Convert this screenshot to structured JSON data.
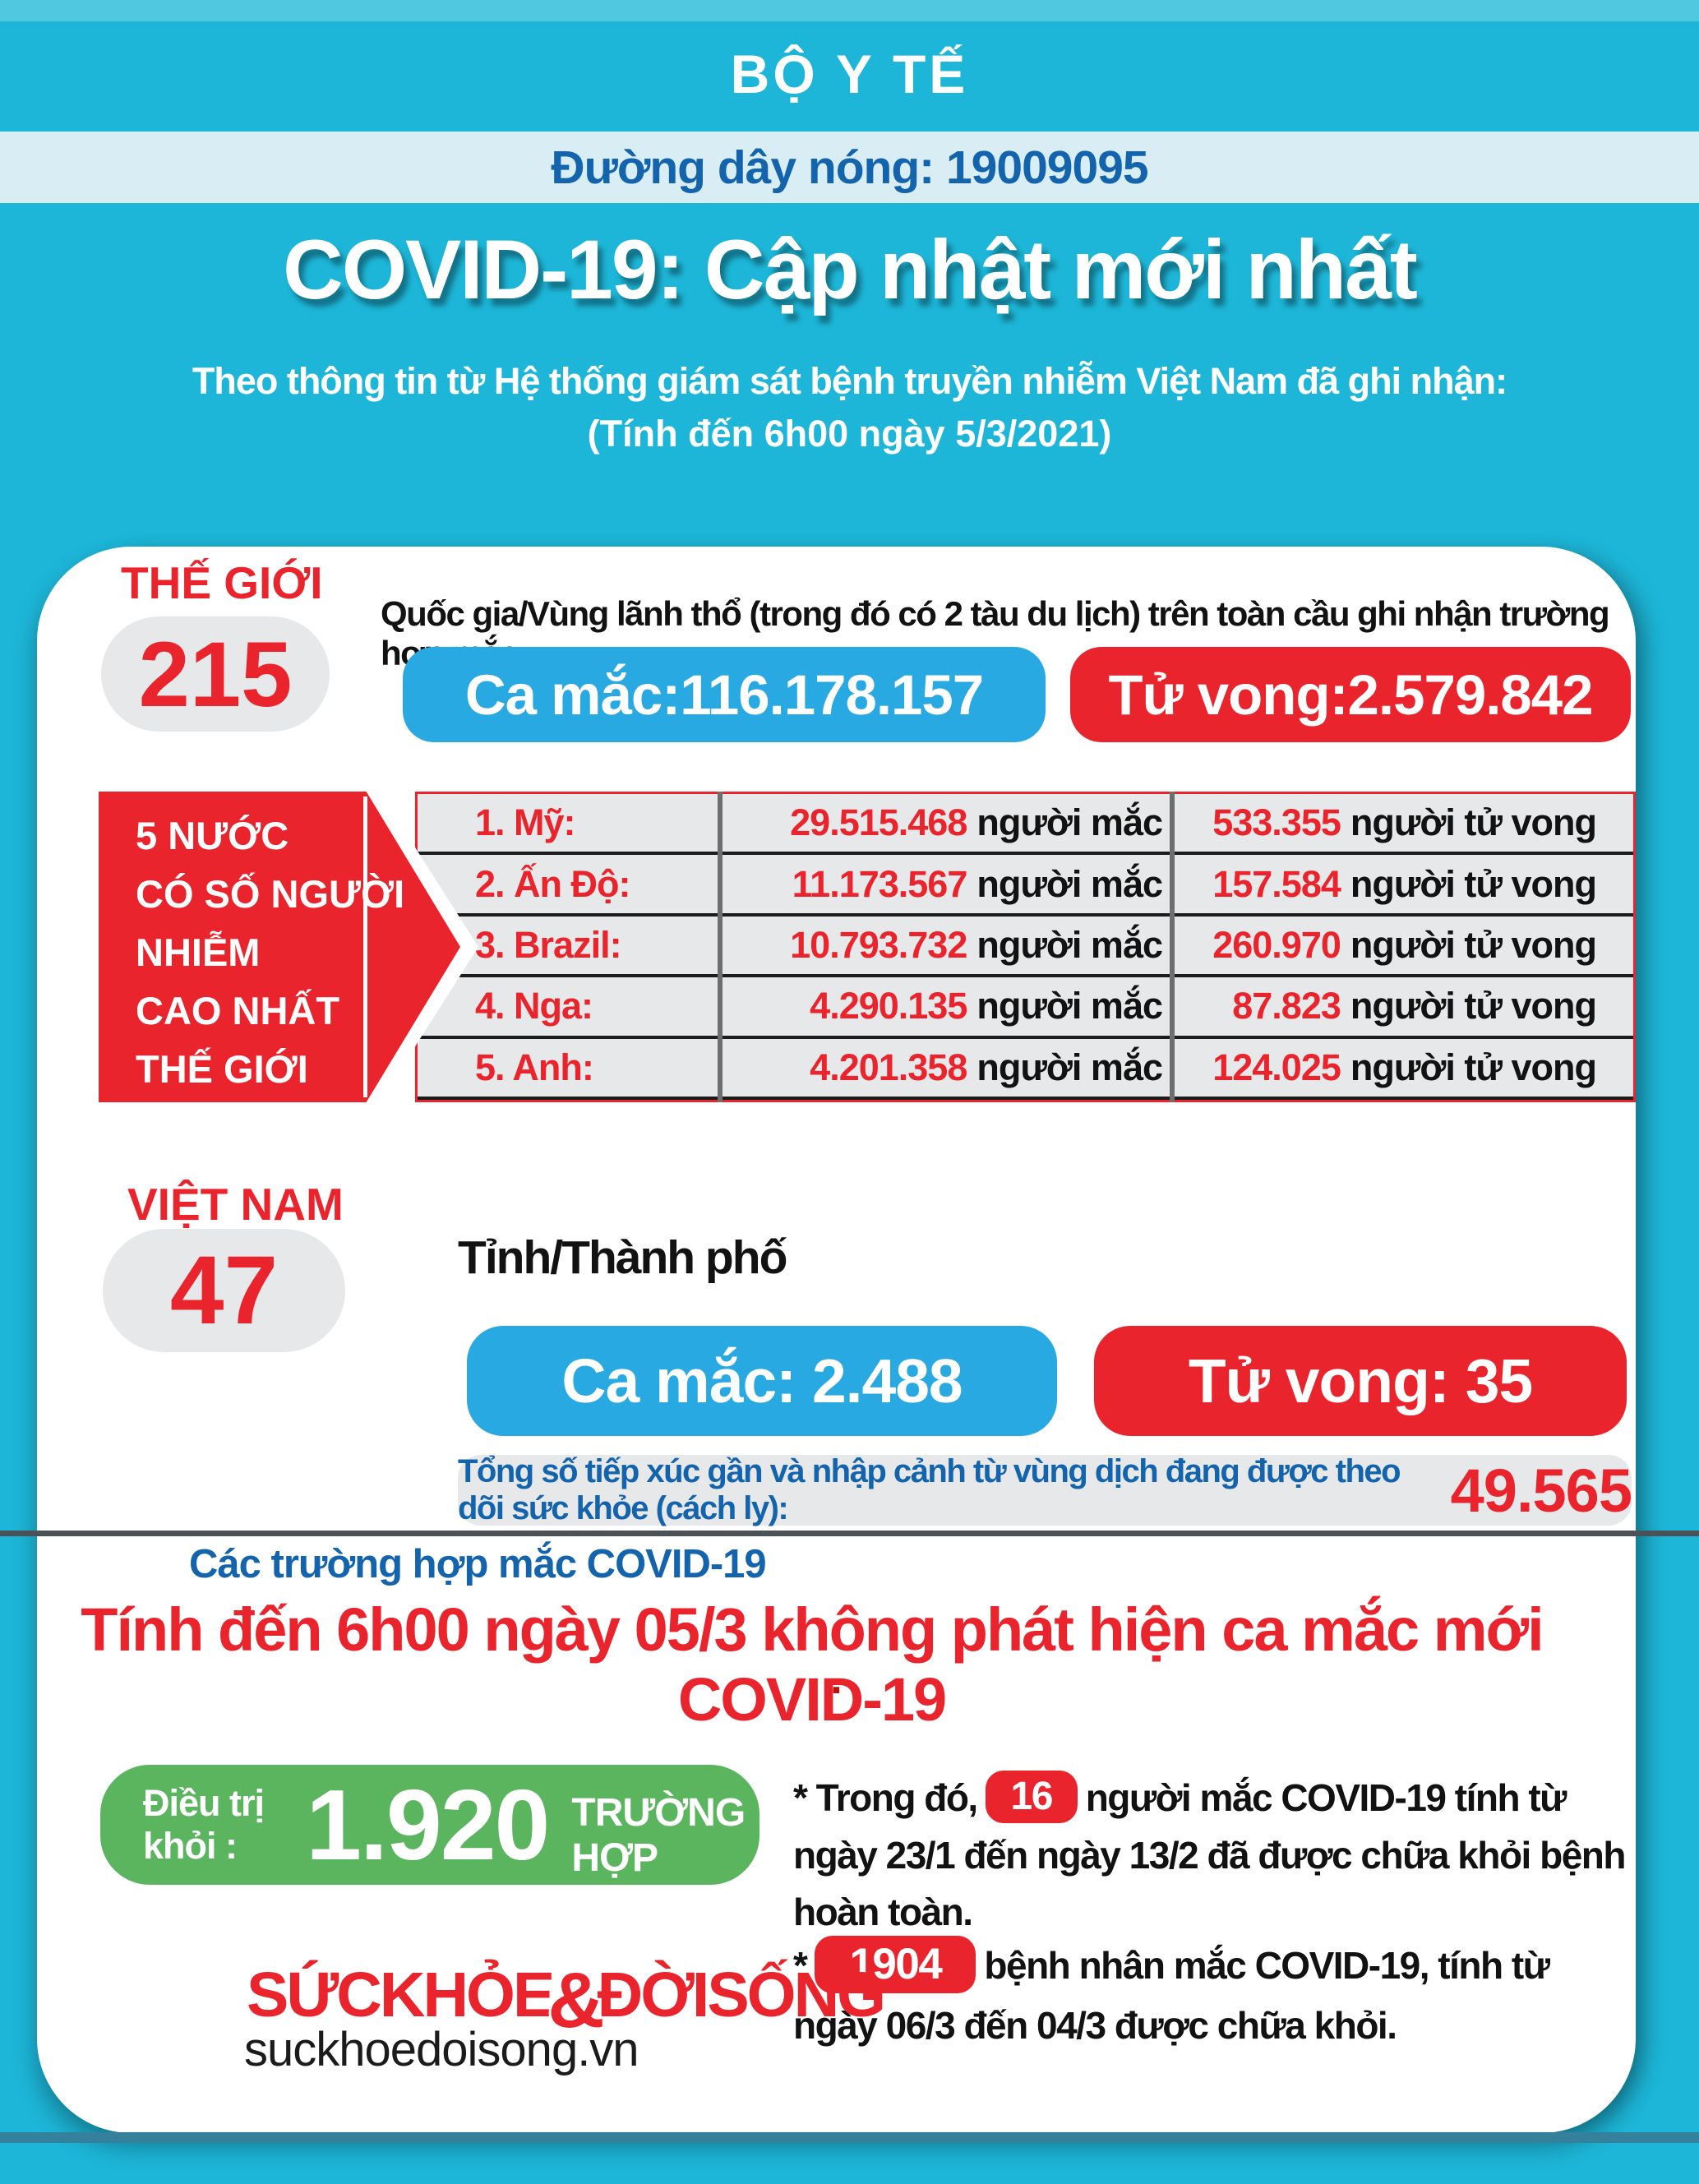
{
  "header": {
    "ministry": "BỘ Y TẾ",
    "hotline": "Đường dây nóng: 19009095",
    "title": "COVID-19: Cập nhật mới nhất",
    "subtitle": "Theo thông tin từ Hệ thống giám sát bệnh truyền nhiễm Việt Nam đã ghi nhận:",
    "as_of": "(Tính đến 6h00 ngày 5/3/2021)"
  },
  "world": {
    "label": "THẾ GIỚI",
    "count": "215",
    "description": "Quốc gia/Vùng lãnh thổ (trong đó có 2 tàu du lịch) trên toàn cầu ghi nhận trường hợp mắc",
    "cases_pill": "Ca mắc:116.178.157",
    "deaths_pill": "Tử vong:2.579.842",
    "top5_label": "5 NƯỚC\nCÓ SỐ NGƯỜI\nNHIỄM\nCAO NHẤT\nTHẾ GIỚI",
    "table": {
      "rows": [
        {
          "country": "1. Mỹ:",
          "cases": "29.515.468",
          "cases_unit": "người mắc",
          "deaths": "533.355",
          "deaths_unit": "người tử vong"
        },
        {
          "country": "2. Ấn Độ:",
          "cases": "11.173.567",
          "cases_unit": "người mắc",
          "deaths": "157.584",
          "deaths_unit": "người tử vong"
        },
        {
          "country": "3. Brazil:",
          "cases": "10.793.732",
          "cases_unit": "người mắc",
          "deaths": "260.970",
          "deaths_unit": "người tử vong"
        },
        {
          "country": "4. Nga:",
          "cases": "4.290.135",
          "cases_unit": "người mắc",
          "deaths": "87.823",
          "deaths_unit": "người tử vong"
        },
        {
          "country": "5. Anh:",
          "cases": "4.201.358",
          "cases_unit": "người mắc",
          "deaths": "124.025",
          "deaths_unit": "người tử vong"
        }
      ]
    }
  },
  "vietnam": {
    "label": "VIỆT NAM",
    "count": "47",
    "unit": "Tỉnh/Thành phố",
    "cases_pill": "Ca mắc: 2.488",
    "deaths_pill": "Tử vong:  35",
    "quarantine_text": "Tổng số tiếp xúc gần và nhập cảnh từ vùng dịch đang được theo dõi sức khỏe (cách ly):",
    "quarantine_count": "49.565"
  },
  "cases_section": {
    "heading": "Các trường hợp mắc COVID-19",
    "headline": "Tính đến 6h00 ngày 05/3 không phát hiện ca mắc mới COVID-19",
    "dot": "."
  },
  "recovered": {
    "label": "Điều trị khỏi :",
    "count": "1.920",
    "unit": "TRƯỜNG HỢP"
  },
  "notes": [
    {
      "prefix": "* Trong đó,",
      "badge": "16",
      "text": "người mắc COVID-19 tính từ ngày 23/1 đến ngày 13/2 đã được chữa  khỏi bệnh hoàn toàn."
    },
    {
      "prefix": "*",
      "badge": "1904",
      "text": "bệnh nhân  mắc COVID-19, tính từ ngày 06/3 đến 04/3 được chữa khỏi."
    }
  ],
  "branding": {
    "logo_word1": "SỨCKHỎE",
    "logo_amp": "&",
    "logo_word2": "ĐỜISỐNG",
    "website": "suckhoedoisong.vn"
  },
  "colors": {
    "cyan": "#1db6d8",
    "cyan-top": "#4fc8e0",
    "band": "#d9edf5",
    "band-text": "#1464ad",
    "red": "#e9242c",
    "blue": "#29a9e2",
    "grey": "#e7e8e9",
    "green": "#5bb55f",
    "ink": "#121212",
    "divider": "#4a5257",
    "footer-line": "#35809a"
  }
}
